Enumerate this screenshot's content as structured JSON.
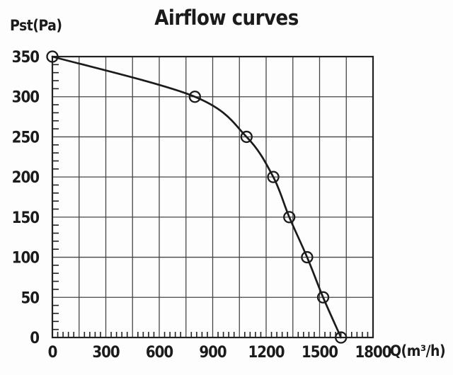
{
  "figure": {
    "title": "Airflow curves",
    "y_axis_unit_label": "Pst(Pa)",
    "x_axis_unit_label": "Q(m³/h)"
  },
  "chart_data": {
    "type": "line",
    "title": "Airflow curves",
    "xlabel": "Q(m³/h)",
    "ylabel": "Pst(Pa)",
    "xlim": [
      0,
      1800
    ],
    "ylim": [
      0,
      350
    ],
    "x_tick_labels": [
      0,
      300,
      600,
      900,
      1200,
      1500,
      1800
    ],
    "y_tick_labels": [
      0,
      50,
      100,
      150,
      200,
      250,
      300,
      350
    ],
    "x_gridline_step": 150,
    "y_gridline_step": 50,
    "x_minor_tick_step": 30,
    "y_minor_tick_step": 10,
    "grid": "on",
    "legend": "none",
    "series": [
      {
        "name": "airflow-curve",
        "marker": "open-circle",
        "points": [
          [
            0,
            350
          ],
          [
            800,
            300
          ],
          [
            1090,
            250
          ],
          [
            1240,
            200
          ],
          [
            1330,
            150
          ],
          [
            1430,
            100
          ],
          [
            1520,
            50
          ],
          [
            1620,
            0
          ]
        ]
      }
    ],
    "colors": {
      "line": "#1b1b1b",
      "grid": "#454545",
      "axis": "#222222",
      "text": "#1b1b1b",
      "background": "#fdfdfd"
    }
  }
}
